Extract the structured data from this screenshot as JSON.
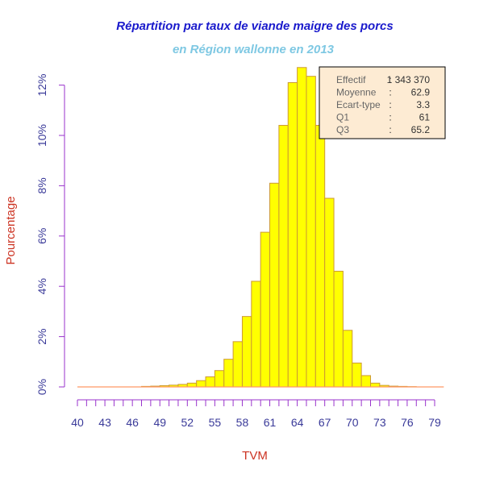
{
  "chart_data": {
    "type": "bar",
    "title": "Répartition par taux de viande maigre des porcs",
    "subtitle": "en Région wallonne en 2013",
    "xlabel": "TVM",
    "ylabel": "Pourcentage",
    "bin_start": 40,
    "bin_width": 1,
    "x_range": [
      40,
      80
    ],
    "xlim": [
      40,
      79
    ],
    "x_ticks": [
      "40",
      "43",
      "46",
      "49",
      "52",
      "55",
      "58",
      "61",
      "64",
      "67",
      "70",
      "73",
      "76",
      "79"
    ],
    "ylim": [
      0,
      12.5
    ],
    "y_ticks": [
      "0%",
      "2%",
      "4%",
      "6%",
      "8%",
      "10%",
      "12%"
    ],
    "values": [
      0,
      0,
      0,
      0,
      0,
      0,
      0,
      0.02,
      0.03,
      0.05,
      0.07,
      0.1,
      0.15,
      0.25,
      0.4,
      0.65,
      1.1,
      1.8,
      2.8,
      4.2,
      6.15,
      8.1,
      10.4,
      12.1,
      12.7,
      12.35,
      10.4,
      7.5,
      4.6,
      2.25,
      0.95,
      0.45,
      0.15,
      0.06,
      0.03,
      0.02,
      0.01,
      0,
      0,
      0
    ],
    "colors": {
      "bar_fill": "#ffff00",
      "bar_stroke": "#cc9933",
      "axis": "#9933cc",
      "baseline": "#ff9966",
      "legend_bg": "#fdebd3"
    },
    "stats": {
      "rows": [
        {
          "label": "Effectif",
          "sep": ":",
          "value": "1 343 370"
        },
        {
          "label": "Moyenne",
          "sep": ":",
          "value": "62.9"
        },
        {
          "label": "Ecart-type",
          "sep": ":",
          "value": "3.3"
        },
        {
          "label": "Q1",
          "sep": ":",
          "value": "61"
        },
        {
          "label": "Q3",
          "sep": ":",
          "value": "65.2"
        }
      ],
      "placement": "top-right"
    }
  }
}
